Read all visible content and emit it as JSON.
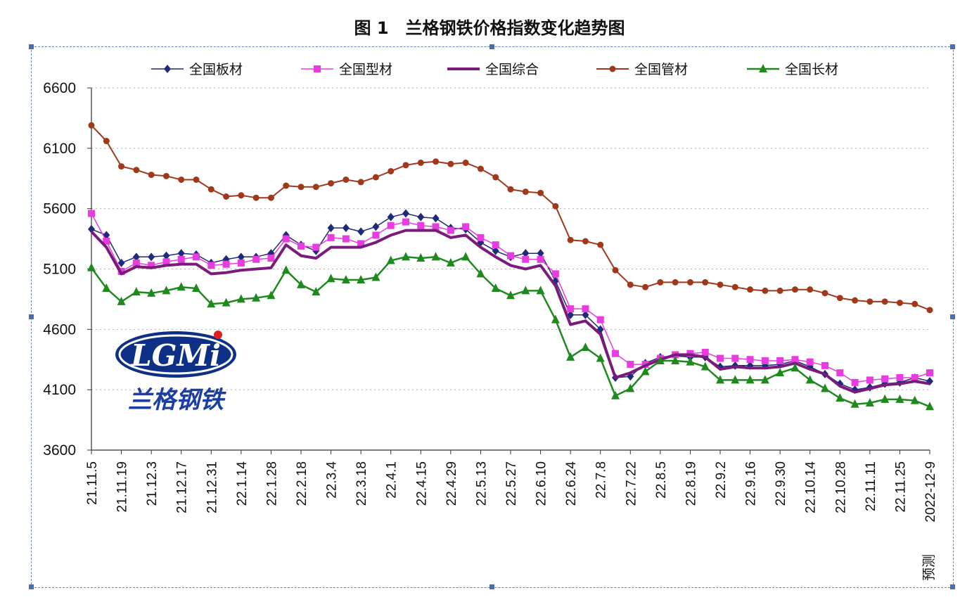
{
  "title": "图 1　兰格钢铁价格指数变化趋势图",
  "logo": {
    "mark": "LGMi",
    "name": "兰格钢铁"
  },
  "colors": {
    "frame": "#5b86c5",
    "grid": "#b0b0b0"
  },
  "chart_data": {
    "type": "line",
    "ylim": [
      3600,
      6600
    ],
    "yticks": [
      3600,
      4100,
      4600,
      5100,
      5600,
      6100,
      6600
    ],
    "grid": true,
    "legend_position": "top",
    "x_tick_labels": [
      "21.11.5",
      "21.11.19",
      "21.12.3",
      "21.12.17",
      "21.12.31",
      "22.1.14",
      "22.1.28",
      "22.2.18",
      "22.3.4",
      "22.3.18",
      "22.4.1",
      "22.4.15",
      "22.4.29",
      "22.5.13",
      "22.5.27",
      "22.6.10",
      "22.6.24",
      "22.7.8",
      "22.7.22",
      "22.8.5",
      "22.8.19",
      "22.9.2",
      "22.9.16",
      "22.9.30",
      "22.10.14",
      "22.10.28",
      "22.11.11",
      "22.11.25",
      "2022-12-9"
    ],
    "x_end_note": "预测",
    "series": [
      {
        "name": "全国板材",
        "color": "#1f2a7a",
        "marker": "diamond",
        "line_width": 1.5,
        "values": [
          5430,
          5380,
          5150,
          5200,
          5200,
          5210,
          5230,
          5220,
          5150,
          5180,
          5200,
          5200,
          5230,
          5380,
          5300,
          5250,
          5440,
          5440,
          5410,
          5450,
          5530,
          5560,
          5530,
          5520,
          5440,
          5430,
          5320,
          5250,
          5200,
          5230,
          5230,
          5000,
          4720,
          4720,
          4600,
          4200,
          4210,
          4320,
          4370,
          4380,
          4370,
          4370,
          4290,
          4300,
          4300,
          4300,
          4310,
          4340,
          4290,
          4230,
          4150,
          4100,
          4120,
          4150,
          4160,
          4200,
          4170
        ]
      },
      {
        "name": "全国型材",
        "color": "#e83be0",
        "marker": "square",
        "line_width": 1.5,
        "values": [
          5560,
          5330,
          5080,
          5150,
          5130,
          5160,
          5180,
          5200,
          5130,
          5140,
          5150,
          5180,
          5190,
          5350,
          5290,
          5280,
          5360,
          5350,
          5310,
          5380,
          5460,
          5490,
          5460,
          5450,
          5420,
          5450,
          5360,
          5300,
          5210,
          5180,
          5180,
          5060,
          4770,
          4770,
          4680,
          4400,
          4310,
          4310,
          4360,
          4390,
          4400,
          4410,
          4360,
          4360,
          4350,
          4340,
          4340,
          4350,
          4330,
          4300,
          4240,
          4160,
          4180,
          4190,
          4200,
          4200,
          4240
        ]
      },
      {
        "name": "全国综合",
        "color": "#7a1a7a",
        "marker": "none",
        "line_width": 4,
        "values": [
          5410,
          5280,
          5060,
          5120,
          5110,
          5130,
          5140,
          5140,
          5060,
          5070,
          5090,
          5100,
          5110,
          5300,
          5210,
          5190,
          5280,
          5280,
          5280,
          5320,
          5380,
          5420,
          5420,
          5420,
          5360,
          5380,
          5280,
          5200,
          5130,
          5100,
          5130,
          4960,
          4640,
          4670,
          4560,
          4200,
          4240,
          4300,
          4350,
          4390,
          4390,
          4370,
          4270,
          4290,
          4280,
          4280,
          4290,
          4320,
          4270,
          4230,
          4130,
          4080,
          4110,
          4140,
          4150,
          4170,
          4150
        ]
      },
      {
        "name": "全国管材",
        "color": "#a0391c",
        "marker": "circle",
        "line_width": 2,
        "values": [
          6290,
          6160,
          5950,
          5920,
          5880,
          5870,
          5840,
          5840,
          5760,
          5700,
          5710,
          5690,
          5690,
          5790,
          5780,
          5780,
          5810,
          5840,
          5820,
          5860,
          5910,
          5960,
          5980,
          5990,
          5970,
          5980,
          5930,
          5860,
          5760,
          5740,
          5730,
          5620,
          5340,
          5330,
          5300,
          5090,
          4970,
          4950,
          4990,
          4990,
          4990,
          4990,
          4970,
          4950,
          4930,
          4920,
          4920,
          4930,
          4930,
          4900,
          4860,
          4840,
          4830,
          4830,
          4820,
          4810,
          4760
        ]
      },
      {
        "name": "全国长材",
        "color": "#1e8a1e",
        "marker": "triangle",
        "line_width": 2.5,
        "values": [
          5110,
          4940,
          4830,
          4910,
          4900,
          4920,
          4950,
          4940,
          4810,
          4820,
          4850,
          4860,
          4880,
          5090,
          4970,
          4910,
          5020,
          5010,
          5010,
          5030,
          5170,
          5200,
          5190,
          5200,
          5150,
          5200,
          5060,
          4940,
          4880,
          4920,
          4920,
          4680,
          4370,
          4450,
          4360,
          4050,
          4110,
          4250,
          4340,
          4340,
          4330,
          4290,
          4180,
          4180,
          4180,
          4180,
          4240,
          4280,
          4180,
          4110,
          4030,
          3980,
          3990,
          4020,
          4020,
          4010,
          3960
        ]
      }
    ]
  }
}
